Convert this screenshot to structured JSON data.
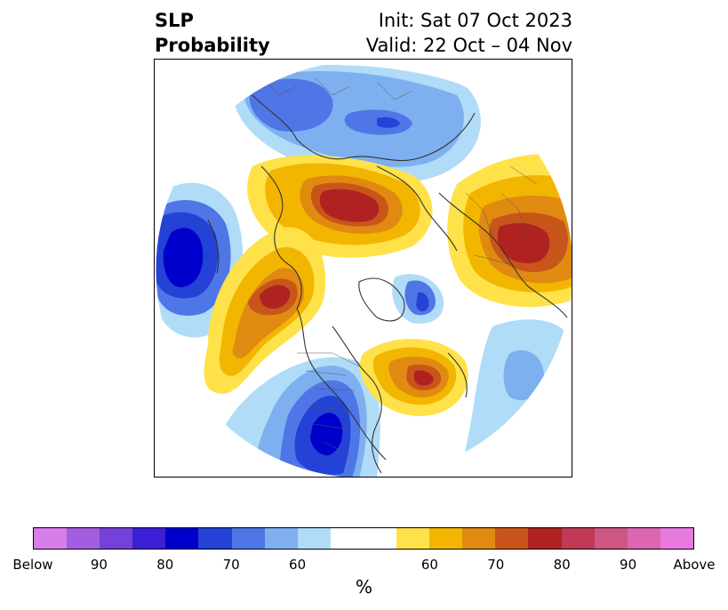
{
  "title": {
    "left_line1": "SLP",
    "left_line2": "Probability",
    "right_line1": "Init: Sat 07 Oct 2023",
    "right_line2": "Valid: 22 Oct – 04 Nov"
  },
  "colorbar": {
    "segments": [
      "#d87ee8",
      "#a35ee0",
      "#7442d8",
      "#3b1fd4",
      "#0000cc",
      "#2442d6",
      "#4e76e6",
      "#7eb0f0",
      "#b0dcf8",
      "#ffffff",
      "#ffffff",
      "#ffe24a",
      "#f2b600",
      "#e08a12",
      "#c8561a",
      "#b02222",
      "#c03a56",
      "#ce5684",
      "#dc66b0",
      "#e87ae0"
    ],
    "ticks": [
      "Below",
      "90",
      "80",
      "70",
      "60",
      "60",
      "70",
      "80",
      "90",
      "Above"
    ],
    "unit": "%"
  },
  "map_colors": {
    "blue_light": "#b0dcf8",
    "blue_mid": "#7eb0f0",
    "blue_medium": "#4e76e6",
    "blue_strong": "#2442d6",
    "blue_dark": "#0000cc",
    "yellow": "#ffe24a",
    "gold": "#f2b600",
    "orange": "#e08a12",
    "red_orange": "#c8561a",
    "red": "#b02222"
  }
}
